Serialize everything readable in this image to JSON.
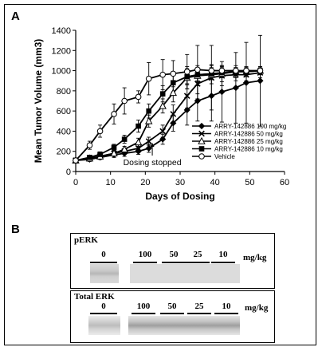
{
  "panel_a_label": "A",
  "panel_b_label": "B",
  "chart_data": {
    "type": "line",
    "title": "",
    "xlabel": "Days of Dosing",
    "ylabel": "Mean Tumor Volume (mm3)",
    "xlim": [
      0,
      60
    ],
    "ylim": [
      0,
      1400
    ],
    "xticks": [
      0,
      10,
      20,
      30,
      40,
      50,
      60
    ],
    "yticks": [
      0,
      200,
      400,
      600,
      800,
      1000,
      1200,
      1400
    ],
    "grid": false,
    "legend_position": "right",
    "annotation": "Dosing stopped",
    "annotation_x": 22,
    "series": [
      {
        "name": "ARRY-142886 100 mg/kg",
        "marker": "diamond",
        "x": [
          0,
          4,
          7,
          11,
          14,
          18,
          21,
          25,
          28,
          32,
          35,
          39,
          42,
          46,
          49,
          53
        ],
        "y": [
          110,
          120,
          140,
          165,
          180,
          200,
          230,
          320,
          480,
          610,
          700,
          750,
          790,
          830,
          880,
          900
        ],
        "err": [
          20,
          20,
          20,
          25,
          30,
          30,
          40,
          50,
          80,
          150,
          200,
          250,
          300,
          350,
          400,
          450
        ]
      },
      {
        "name": "ARRY-142886 50 mg/kg",
        "marker": "x",
        "x": [
          0,
          4,
          7,
          11,
          14,
          18,
          21,
          25,
          28,
          32,
          35,
          39,
          42,
          46,
          49,
          53
        ],
        "y": [
          110,
          130,
          150,
          180,
          200,
          230,
          300,
          400,
          570,
          750,
          870,
          930,
          950,
          960,
          960,
          980
        ],
        "err": [
          20,
          20,
          20,
          25,
          30,
          35,
          40,
          60,
          90,
          120,
          150,
          320,
          100,
          60,
          60,
          50
        ]
      },
      {
        "name": "ARRY-142886 25 mg/kg",
        "marker": "triangle",
        "x": [
          0,
          4,
          7,
          11,
          14,
          18,
          21,
          25,
          28,
          32,
          35,
          39,
          42,
          46,
          49,
          53
        ],
        "y": [
          110,
          130,
          150,
          180,
          220,
          290,
          500,
          650,
          780,
          930,
          950,
          960,
          970,
          990,
          990,
          1000
        ],
        "err": [
          20,
          20,
          20,
          25,
          30,
          40,
          60,
          70,
          90,
          110,
          100,
          90,
          80,
          60,
          50,
          40
        ]
      },
      {
        "name": "ARRY-142886 10 mg/kg",
        "marker": "square",
        "x": [
          0,
          4,
          7,
          11,
          14,
          18,
          21,
          25,
          28,
          32,
          35,
          39,
          42,
          46,
          49,
          53
        ],
        "y": [
          110,
          140,
          170,
          240,
          320,
          450,
          600,
          770,
          880,
          940,
          960,
          970,
          980,
          990,
          990,
          1000
        ],
        "err": [
          20,
          20,
          25,
          30,
          40,
          60,
          70,
          80,
          90,
          80,
          70,
          60,
          50,
          40,
          40,
          40
        ]
      },
      {
        "name": "Vehicle",
        "marker": "circle",
        "x": [
          0,
          4,
          7,
          11,
          14,
          18,
          21,
          25,
          28,
          32,
          35,
          39,
          42,
          46,
          49,
          53
        ],
        "y": [
          110,
          260,
          400,
          570,
          700,
          740,
          920,
          960,
          970,
          990,
          1010,
          1000,
          1000,
          1000,
          1000,
          1000
        ],
        "err": [
          20,
          40,
          60,
          100,
          130,
          60,
          160,
          150,
          130,
          170,
          240,
          60,
          40,
          30,
          30,
          20
        ]
      }
    ]
  },
  "blots": [
    {
      "title": "pERK",
      "unit": "mg/kg",
      "lanes": [
        "0",
        "100",
        "50",
        "25",
        "10"
      ]
    },
    {
      "title": "Total ERK",
      "unit": "mg/kg",
      "lanes": [
        "0",
        "100",
        "50",
        "25",
        "10"
      ]
    }
  ]
}
